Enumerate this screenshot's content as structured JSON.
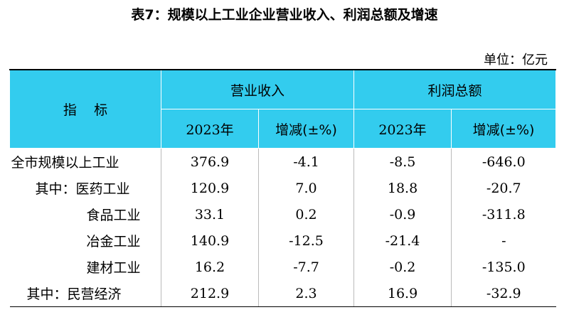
{
  "title": "表7：规模以上工业企业营业收入、利润总额及增速",
  "unit": "单位：亿元",
  "header": {
    "indicator": "指    标",
    "revenue": "营业收入",
    "profit": "利润总额",
    "year": "2023年",
    "change": "增减(±%)"
  },
  "rows": [
    {
      "label": "全市规模以上工业",
      "rev": "376.9",
      "rev_chg": "-4.1",
      "profit": "-8.5",
      "profit_chg": "-646.0"
    },
    {
      "label": "其中：医药工业",
      "rev": "120.9",
      "rev_chg": "7.0",
      "profit": "18.8",
      "profit_chg": "-20.7"
    },
    {
      "label": "食品工业",
      "rev": "33.1",
      "rev_chg": "0.2",
      "profit": "-0.9",
      "profit_chg": "-311.8"
    },
    {
      "label": "冶金工业",
      "rev": "140.9",
      "rev_chg": "-12.5",
      "profit": "-21.4",
      "profit_chg": "-"
    },
    {
      "label": "建材工业",
      "rev": "16.2",
      "rev_chg": "-7.7",
      "profit": "-0.2",
      "profit_chg": "-135.0"
    },
    {
      "label": "其中：民营经济",
      "rev": "212.9",
      "rev_chg": "2.3",
      "profit": "16.9",
      "profit_chg": "-32.9"
    }
  ]
}
